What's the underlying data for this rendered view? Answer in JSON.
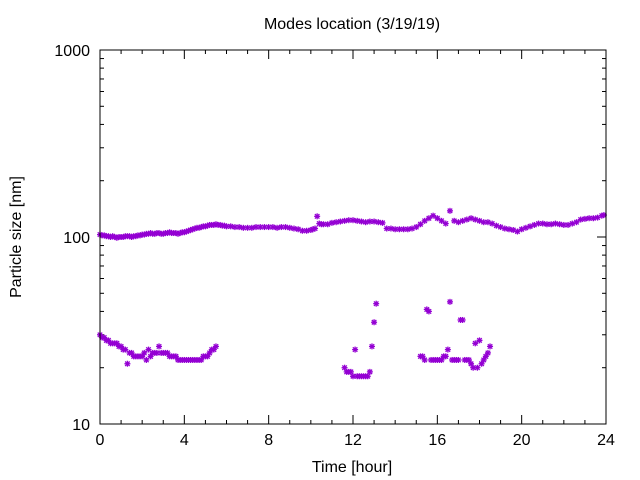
{
  "chart_data": {
    "type": "scatter",
    "title": "Modes location (3/19/19)",
    "xlabel": "Time [hour]",
    "ylabel": "Particle size [nm]",
    "xlim": [
      0,
      24
    ],
    "ylim": [
      10,
      1000
    ],
    "yscale": "log",
    "x_ticks": [
      "0",
      "4",
      "8",
      "12",
      "16",
      "20",
      "24"
    ],
    "y_ticks": [
      "10",
      "100",
      "1000"
    ],
    "grid": false,
    "marker_color": "#9400d3",
    "series": [
      {
        "points": [
          [
            0.0,
            103
          ],
          [
            0.1,
            102
          ],
          [
            0.2,
            102
          ],
          [
            0.3,
            101
          ],
          [
            0.4,
            101
          ],
          [
            0.5,
            100
          ],
          [
            0.6,
            101
          ],
          [
            0.7,
            100
          ],
          [
            0.8,
            99
          ],
          [
            0.9,
            100
          ],
          [
            1.0,
            100
          ],
          [
            1.1,
            100
          ],
          [
            1.2,
            101
          ],
          [
            1.3,
            101
          ],
          [
            1.4,
            101
          ],
          [
            1.5,
            100
          ],
          [
            1.6,
            101
          ],
          [
            1.7,
            101
          ],
          [
            1.8,
            102
          ],
          [
            1.9,
            102
          ],
          [
            2.0,
            103
          ],
          [
            2.1,
            103
          ],
          [
            2.2,
            104
          ],
          [
            2.3,
            104
          ],
          [
            2.4,
            105
          ],
          [
            2.5,
            104
          ],
          [
            2.6,
            104
          ],
          [
            2.7,
            105
          ],
          [
            2.8,
            105
          ],
          [
            2.9,
            104
          ],
          [
            3.0,
            104
          ],
          [
            3.1,
            105
          ],
          [
            3.2,
            105
          ],
          [
            3.3,
            106
          ],
          [
            3.4,
            105
          ],
          [
            3.5,
            105
          ],
          [
            3.6,
            105
          ],
          [
            3.7,
            104
          ],
          [
            3.8,
            105
          ],
          [
            3.9,
            106
          ],
          [
            4.0,
            106
          ],
          [
            4.1,
            107
          ],
          [
            4.2,
            108
          ],
          [
            4.3,
            109
          ],
          [
            4.4,
            110
          ],
          [
            4.5,
            111
          ],
          [
            4.6,
            112
          ],
          [
            4.7,
            112
          ],
          [
            4.8,
            113
          ],
          [
            4.9,
            114
          ],
          [
            5.0,
            114
          ],
          [
            5.1,
            115
          ],
          [
            5.2,
            116
          ],
          [
            5.3,
            116
          ],
          [
            5.4,
            116
          ],
          [
            5.5,
            117
          ],
          [
            5.6,
            116
          ],
          [
            5.7,
            116
          ],
          [
            5.8,
            115
          ],
          [
            5.9,
            115
          ],
          [
            6.0,
            114
          ],
          [
            6.2,
            114
          ],
          [
            6.4,
            113
          ],
          [
            6.6,
            113
          ],
          [
            6.8,
            112
          ],
          [
            7.0,
            112
          ],
          [
            7.2,
            112
          ],
          [
            7.4,
            113
          ],
          [
            7.6,
            113
          ],
          [
            7.8,
            113
          ],
          [
            8.0,
            113
          ],
          [
            8.2,
            113
          ],
          [
            8.4,
            112
          ],
          [
            8.6,
            113
          ],
          [
            8.8,
            113
          ],
          [
            9.0,
            112
          ],
          [
            9.2,
            111
          ],
          [
            9.4,
            110
          ],
          [
            9.6,
            108
          ],
          [
            9.8,
            108
          ],
          [
            10.0,
            109
          ],
          [
            10.1,
            110
          ],
          [
            10.2,
            111
          ],
          [
            10.3,
            129
          ],
          [
            10.4,
            118
          ],
          [
            10.5,
            117
          ],
          [
            10.6,
            117
          ],
          [
            10.8,
            117
          ],
          [
            11.0,
            119
          ],
          [
            11.2,
            120
          ],
          [
            11.4,
            121
          ],
          [
            11.6,
            122
          ],
          [
            11.8,
            123
          ],
          [
            12.0,
            123
          ],
          [
            12.2,
            122
          ],
          [
            12.4,
            121
          ],
          [
            12.6,
            120
          ],
          [
            12.8,
            121
          ],
          [
            13.0,
            121
          ],
          [
            13.2,
            120
          ],
          [
            13.4,
            119
          ],
          [
            13.6,
            111
          ],
          [
            13.8,
            111
          ],
          [
            14.0,
            110
          ],
          [
            14.2,
            110
          ],
          [
            14.4,
            110
          ],
          [
            14.6,
            110
          ],
          [
            14.8,
            111
          ],
          [
            15.0,
            113
          ],
          [
            15.2,
            117
          ],
          [
            15.4,
            122
          ],
          [
            15.6,
            126
          ],
          [
            15.8,
            130
          ],
          [
            16.0,
            126
          ],
          [
            16.2,
            122
          ],
          [
            16.4,
            118
          ],
          [
            16.6,
            138
          ],
          [
            16.8,
            122
          ],
          [
            17.0,
            120
          ],
          [
            17.2,
            122
          ],
          [
            17.4,
            124
          ],
          [
            17.6,
            126
          ],
          [
            17.8,
            124
          ],
          [
            18.0,
            122
          ],
          [
            18.2,
            120
          ],
          [
            18.4,
            120
          ],
          [
            18.6,
            118
          ],
          [
            18.8,
            115
          ],
          [
            19.0,
            113
          ],
          [
            19.2,
            111
          ],
          [
            19.4,
            110
          ],
          [
            19.6,
            109
          ],
          [
            19.8,
            107
          ],
          [
            20.0,
            110
          ],
          [
            20.2,
            112
          ],
          [
            20.4,
            114
          ],
          [
            20.6,
            116
          ],
          [
            20.8,
            118
          ],
          [
            21.0,
            118
          ],
          [
            21.2,
            117
          ],
          [
            21.4,
            117
          ],
          [
            21.6,
            118
          ],
          [
            21.8,
            117
          ],
          [
            22.0,
            116
          ],
          [
            22.2,
            116
          ],
          [
            22.4,
            118
          ],
          [
            22.6,
            120
          ],
          [
            22.8,
            124
          ],
          [
            23.0,
            125
          ],
          [
            23.2,
            126
          ],
          [
            23.4,
            126
          ],
          [
            23.6,
            127
          ],
          [
            23.8,
            130
          ],
          [
            23.9,
            131
          ]
        ]
      },
      {
        "points": [
          [
            0.0,
            30
          ],
          [
            0.1,
            29
          ],
          [
            0.2,
            29
          ],
          [
            0.3,
            28
          ],
          [
            0.4,
            28
          ],
          [
            0.5,
            27
          ],
          [
            0.6,
            27
          ],
          [
            0.7,
            27
          ],
          [
            0.8,
            27
          ],
          [
            0.9,
            26
          ],
          [
            1.0,
            26
          ],
          [
            1.1,
            25
          ],
          [
            1.2,
            25
          ],
          [
            1.3,
            21
          ],
          [
            1.4,
            24
          ],
          [
            1.5,
            24
          ],
          [
            1.6,
            23
          ],
          [
            1.7,
            23
          ],
          [
            1.8,
            23
          ],
          [
            1.9,
            23
          ],
          [
            2.0,
            23
          ],
          [
            2.1,
            24
          ],
          [
            2.2,
            22
          ],
          [
            2.3,
            25
          ],
          [
            2.4,
            23
          ],
          [
            2.5,
            24
          ],
          [
            2.6,
            24
          ],
          [
            2.7,
            24
          ],
          [
            2.8,
            26
          ],
          [
            2.9,
            24
          ],
          [
            3.0,
            24
          ],
          [
            3.1,
            24
          ],
          [
            3.2,
            24
          ],
          [
            3.3,
            23
          ],
          [
            3.4,
            23
          ],
          [
            3.5,
            23
          ],
          [
            3.6,
            23
          ],
          [
            3.7,
            22
          ],
          [
            3.8,
            22
          ],
          [
            3.9,
            22
          ],
          [
            4.0,
            22
          ],
          [
            4.1,
            22
          ],
          [
            4.2,
            22
          ],
          [
            4.3,
            22
          ],
          [
            4.4,
            22
          ],
          [
            4.5,
            22
          ],
          [
            4.6,
            22
          ],
          [
            4.7,
            22
          ],
          [
            4.8,
            22
          ],
          [
            4.9,
            23
          ],
          [
            5.0,
            23
          ],
          [
            5.1,
            23
          ],
          [
            5.2,
            24
          ],
          [
            5.3,
            25
          ],
          [
            5.4,
            25
          ],
          [
            5.5,
            26
          ],
          [
            11.6,
            20
          ],
          [
            11.7,
            19
          ],
          [
            11.8,
            19
          ],
          [
            11.9,
            19
          ],
          [
            12.0,
            18
          ],
          [
            12.1,
            25
          ],
          [
            12.2,
            18
          ],
          [
            12.3,
            18
          ],
          [
            12.4,
            18
          ],
          [
            12.5,
            18
          ],
          [
            12.6,
            18
          ],
          [
            12.7,
            18
          ],
          [
            12.8,
            19
          ],
          [
            12.9,
            26
          ],
          [
            13.0,
            35
          ],
          [
            13.1,
            44
          ],
          [
            15.2,
            23
          ],
          [
            15.3,
            23
          ],
          [
            15.4,
            22
          ],
          [
            15.5,
            41
          ],
          [
            15.6,
            40
          ],
          [
            15.7,
            22
          ],
          [
            15.8,
            22
          ],
          [
            15.9,
            22
          ],
          [
            16.0,
            22
          ],
          [
            16.1,
            22
          ],
          [
            16.2,
            22
          ],
          [
            16.3,
            23
          ],
          [
            16.4,
            23
          ],
          [
            16.5,
            25
          ],
          [
            16.6,
            45
          ],
          [
            16.7,
            22
          ],
          [
            16.8,
            22
          ],
          [
            16.9,
            22
          ],
          [
            17.0,
            22
          ],
          [
            17.1,
            36
          ],
          [
            17.2,
            36
          ],
          [
            17.3,
            22
          ],
          [
            17.4,
            22
          ],
          [
            17.5,
            22
          ],
          [
            17.6,
            21
          ],
          [
            17.7,
            20
          ],
          [
            17.8,
            27
          ],
          [
            17.9,
            20
          ],
          [
            18.0,
            28
          ],
          [
            18.1,
            21
          ],
          [
            18.2,
            22
          ],
          [
            18.3,
            23
          ],
          [
            18.4,
            24
          ],
          [
            18.5,
            26
          ]
        ]
      }
    ]
  }
}
